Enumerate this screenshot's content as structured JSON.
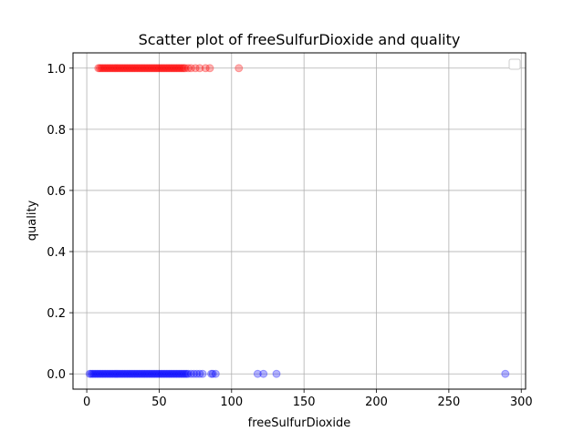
{
  "chart_data": {
    "type": "scatter",
    "title": "Scatter plot of freeSulfurDioxide and quality",
    "xlabel": "freeSulfurDioxide",
    "ylabel": "quality",
    "xlim": [
      -9.5,
      303
    ],
    "ylim": [
      -0.05,
      1.05
    ],
    "x_ticks": [
      0,
      50,
      100,
      150,
      200,
      250,
      300
    ],
    "y_ticks": [
      0.0,
      0.2,
      0.4,
      0.6,
      0.8,
      1.0
    ],
    "x_tick_labels": [
      "0",
      "50",
      "100",
      "150",
      "200",
      "250",
      "300"
    ],
    "y_tick_labels": [
      "0.0",
      "0.2",
      "0.4",
      "0.6",
      "0.8",
      "1.0"
    ],
    "grid": true,
    "legend": "top-right (empty)",
    "series": [
      {
        "color": "#ff0000",
        "alpha": 0.3,
        "y": 1,
        "x": [
          8,
          9,
          10,
          11,
          12,
          13,
          14,
          15,
          16,
          17,
          18,
          19,
          20,
          21,
          22,
          23,
          24,
          25,
          26,
          27,
          28,
          29,
          30,
          31,
          32,
          33,
          34,
          35,
          36,
          37,
          38,
          39,
          40,
          41,
          42,
          43,
          44,
          45,
          46,
          47,
          48,
          49,
          50,
          51,
          52,
          53,
          54,
          55,
          56,
          57,
          58,
          59,
          60,
          61,
          62,
          63,
          64,
          65,
          66,
          67,
          68,
          70,
          72,
          75,
          78,
          82,
          85,
          105
        ]
      },
      {
        "color": "#0000ff",
        "alpha": 0.3,
        "y": 0,
        "x": [
          2,
          3,
          4,
          5,
          6,
          7,
          8,
          9,
          10,
          11,
          12,
          13,
          14,
          15,
          16,
          17,
          18,
          19,
          20,
          21,
          22,
          23,
          24,
          25,
          26,
          27,
          28,
          29,
          30,
          31,
          32,
          33,
          34,
          35,
          36,
          37,
          38,
          39,
          40,
          41,
          42,
          43,
          44,
          45,
          46,
          47,
          48,
          49,
          50,
          51,
          52,
          53,
          54,
          55,
          56,
          57,
          58,
          59,
          60,
          61,
          62,
          63,
          64,
          65,
          66,
          67,
          68,
          69,
          70,
          72,
          74,
          76,
          78,
          80,
          86,
          87,
          89,
          118,
          122,
          131,
          289
        ]
      }
    ]
  }
}
